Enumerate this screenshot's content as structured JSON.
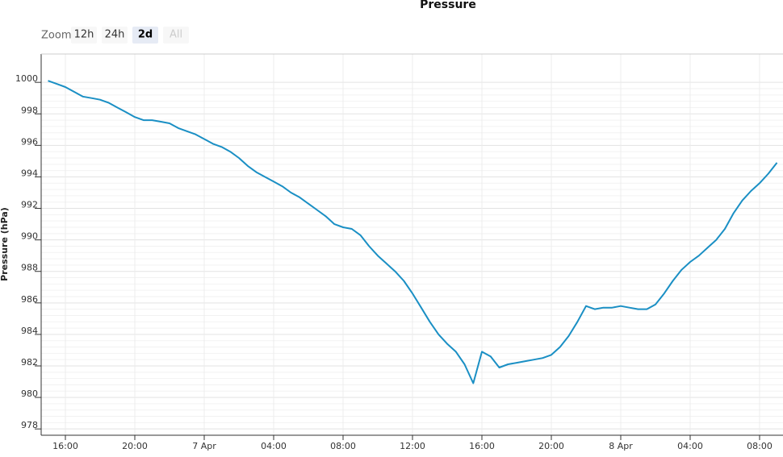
{
  "chart_data": {
    "type": "line",
    "title": "Pressure",
    "ylabel": "Pressure (hPa)",
    "range_selector": {
      "label": "Zoom",
      "buttons": [
        "12h",
        "24h",
        "2d",
        "All"
      ],
      "selected": "2d",
      "disabled": "All"
    },
    "categories": [
      null,
      null,
      "16:00",
      null,
      null,
      null,
      null,
      null,
      null,
      null,
      "20:00",
      null,
      null,
      null,
      null,
      null,
      null,
      null,
      "7 Apr",
      null,
      null,
      null,
      null,
      null,
      null,
      null,
      "04:00",
      null,
      null,
      null,
      null,
      null,
      null,
      null,
      "08:00",
      null,
      null,
      null,
      null,
      null,
      null,
      null,
      "12:00",
      null,
      null,
      null,
      null,
      null,
      null,
      null,
      "16:00",
      null,
      null,
      null,
      null,
      null,
      null,
      null,
      "20:00",
      null,
      null,
      null,
      null,
      null,
      null,
      null,
      "8 Apr",
      null,
      null,
      null,
      null,
      null,
      null,
      null,
      "04:00",
      null,
      null,
      null,
      null,
      null,
      null,
      null,
      "08:00",
      null,
      null
    ],
    "series": [
      {
        "name": "Pressure",
        "color": "#1a8fc4",
        "values": [
          1000.1,
          999.9,
          999.7,
          999.4,
          999.1,
          999.0,
          998.9,
          998.7,
          998.4,
          998.1,
          997.8,
          997.6,
          997.6,
          997.5,
          997.4,
          997.1,
          996.9,
          996.7,
          996.4,
          996.1,
          995.9,
          995.6,
          995.2,
          994.7,
          994.3,
          994.0,
          993.7,
          993.4,
          993.0,
          992.7,
          992.3,
          991.9,
          991.5,
          991.0,
          990.8,
          990.7,
          990.3,
          989.6,
          989.0,
          988.5,
          988.0,
          987.4,
          986.6,
          985.7,
          984.8,
          984.0,
          983.4,
          982.9,
          982.1,
          980.9,
          982.9,
          982.6,
          981.9,
          982.1,
          982.2,
          982.3,
          982.4,
          982.5,
          982.7,
          983.2,
          983.9,
          984.8,
          985.8,
          985.6,
          985.7,
          985.7,
          985.8,
          985.7,
          985.6,
          985.6,
          985.9,
          986.6,
          987.4,
          988.1,
          988.6,
          989.0,
          989.5,
          990.0,
          990.7,
          991.7,
          992.5,
          993.1,
          993.6,
          994.2,
          994.9
        ]
      }
    ],
    "ylim": [
      977.6,
      1001.8
    ],
    "yticks": [
      978,
      980,
      982,
      984,
      986,
      988,
      990,
      992,
      994,
      996,
      998,
      1000
    ],
    "grid": true
  }
}
